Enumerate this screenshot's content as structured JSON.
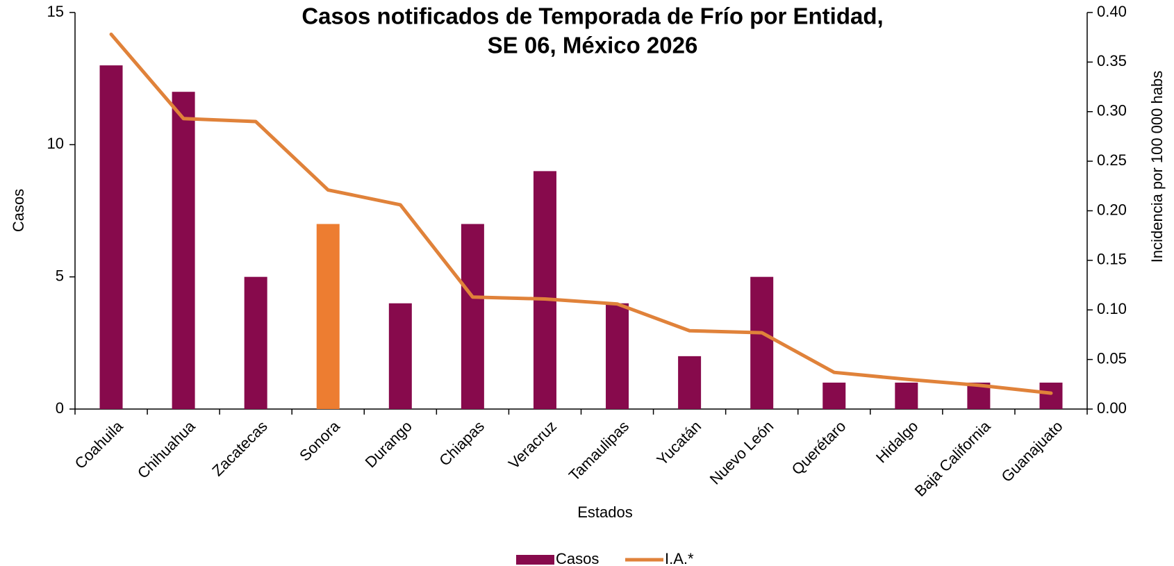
{
  "chart_data": {
    "type": "bar-line",
    "title": [
      "Casos notificados de Temporada de Frío por Entidad,",
      "SE 06, México 2026"
    ],
    "xlabel": "Estados",
    "ylabel": "Casos",
    "y2label": "Incidencia por 100 000 habs",
    "categories": [
      "Coahuila",
      "Chihuahua",
      "Zacatecas",
      "Sonora",
      "Durango",
      "Chiapas",
      "Veracruz",
      "Tamaulipas",
      "Yucatán",
      "Nuevo León",
      "Querétaro",
      "Hidalgo",
      "Baja California",
      "Guanajuato"
    ],
    "series": [
      {
        "name": "Casos",
        "type": "bar",
        "color": "#870a4c",
        "colors": [
          "#870a4c",
          "#870a4c",
          "#870a4c",
          "#ed7d31",
          "#870a4c",
          "#870a4c",
          "#870a4c",
          "#870a4c",
          "#870a4c",
          "#870a4c",
          "#870a4c",
          "#870a4c",
          "#870a4c",
          "#870a4c"
        ],
        "values": [
          13,
          12,
          5,
          7,
          4,
          7,
          9,
          4,
          2,
          5,
          1,
          1,
          1,
          1
        ]
      },
      {
        "name": "I.A.*",
        "type": "line",
        "axis": "y2",
        "color": "#e0823a",
        "values": [
          0.378,
          0.293,
          0.29,
          0.221,
          0.206,
          0.113,
          0.111,
          0.106,
          0.079,
          0.077,
          0.037,
          0.03,
          0.024,
          0.016
        ]
      }
    ],
    "ylim": [
      0,
      15
    ],
    "yticks": [
      0,
      5,
      10,
      15
    ],
    "y2lim": [
      0,
      0.4
    ],
    "y2ticks": [
      {
        "value": 0,
        "label": "0.00"
      },
      {
        "value": 0.05,
        "label": "0.05"
      },
      {
        "value": 0.1,
        "label": "0.10"
      },
      {
        "value": 0.15,
        "label": "0.15"
      },
      {
        "value": 0.2,
        "label": "0.20"
      },
      {
        "value": 0.25,
        "label": "0.25"
      },
      {
        "value": 0.3,
        "label": "0.30"
      },
      {
        "value": 0.35,
        "label": "0.35"
      },
      {
        "value": 0.4,
        "label": "0.40"
      }
    ],
    "grid": false,
    "legend": "bottom"
  }
}
